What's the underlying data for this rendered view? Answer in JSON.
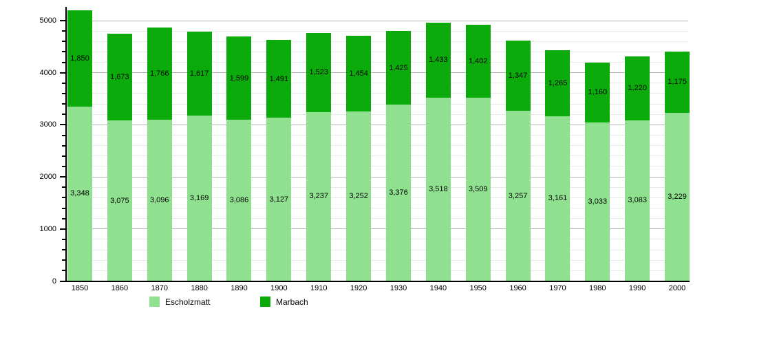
{
  "chart_data": {
    "type": "bar",
    "stacked": true,
    "title": "",
    "xlabel": "",
    "ylabel": "",
    "categories": [
      "1850",
      "1860",
      "1870",
      "1880",
      "1890",
      "1900",
      "1910",
      "1920",
      "1930",
      "1940",
      "1950",
      "1960",
      "1970",
      "1980",
      "1990",
      "2000"
    ],
    "series": [
      {
        "name": "Escholzmatt",
        "color": "#8fe08f",
        "values": [
          3348,
          3075,
          3096,
          3169,
          3086,
          3127,
          3237,
          3252,
          3376,
          3518,
          3509,
          3257,
          3161,
          3033,
          3083,
          3229
        ],
        "labels": [
          "3,348",
          "3,075",
          "3,096",
          "3,169",
          "3,086",
          "3,127",
          "3,237",
          "3,252",
          "3,376",
          "3,518",
          "3,509",
          "3,257",
          "3,161",
          "3,033",
          "3,083",
          "3,229"
        ]
      },
      {
        "name": "Marbach",
        "color": "#0bab0b",
        "values": [
          1850,
          1673,
          1766,
          1617,
          1599,
          1491,
          1523,
          1454,
          1425,
          1433,
          1402,
          1347,
          1265,
          1160,
          1220,
          1175
        ],
        "labels": [
          "1,850",
          "1,673",
          "1,766",
          "1,617",
          "1,599",
          "1,491",
          "1,523",
          "1,454",
          "1,425",
          "1,433",
          "1,402",
          "1,347",
          "1,265",
          "1,160",
          "1,220",
          "1,175"
        ]
      }
    ],
    "y_axis": {
      "min": 0,
      "max": 5000,
      "major_step": 1000,
      "minor_step": 200,
      "tick_labels": [
        "0",
        "1000",
        "2000",
        "3000",
        "4000",
        "5000"
      ]
    },
    "grid": {
      "minor_color": "#e8e8e8",
      "major_color": "#b4b4b4"
    },
    "axis_color": "#000000",
    "legend": {
      "position": "bottom",
      "items": [
        {
          "label": "Escholzmatt",
          "color": "#8fe08f"
        },
        {
          "label": "Marbach",
          "color": "#0bab0b"
        }
      ]
    }
  }
}
